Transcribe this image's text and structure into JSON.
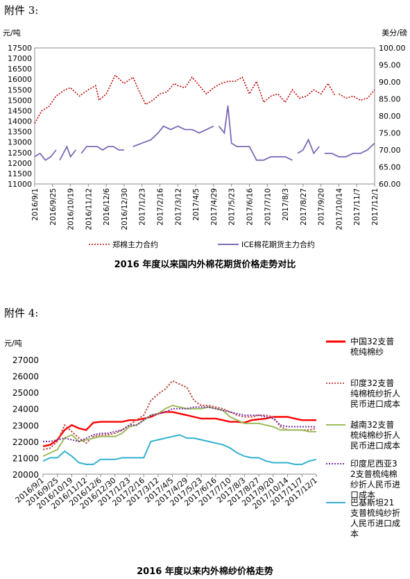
{
  "annex3_label": "附件 3:",
  "annex4_label": "附件 4:",
  "chart_data": [
    {
      "type": "line",
      "title": "2016 年度以来国内外棉花期货价格走势对比",
      "y_left_unit": "元/吨",
      "y_right_unit": "美分/磅",
      "ylim_left": [
        11000,
        17500
      ],
      "ylim_right": [
        60,
        100
      ],
      "y_left_ticks": [
        "11000",
        "11500",
        "12000",
        "12500",
        "13000",
        "13500",
        "14000",
        "14500",
        "15000",
        "15500",
        "16000",
        "16500",
        "17000",
        "17500"
      ],
      "y_right_ticks": [
        "60.00",
        "65.00",
        "70.00",
        "75.00",
        "80.00",
        "85.00",
        "90.00",
        "95.00",
        "100.00"
      ],
      "x_ticks": [
        "2016/9/1",
        "2016/9/25",
        "2016/10/19",
        "2016/11/12",
        "2016/12/6",
        "2016/12/30",
        "2017/1/23",
        "2017/2/16",
        "2017/3/12",
        "2017/4/5",
        "2017/4/29",
        "2017/5/23",
        "2017/6/16",
        "2017/7/10",
        "2017/8/3",
        "2017/8/27",
        "2017/9/20",
        "2017/10/14",
        "2017/11/7",
        "2017/12/1"
      ],
      "legend_position": "bottom",
      "series": [
        {
          "name": "郑棉主力合约",
          "axis": "left",
          "color": "#c00000",
          "style": "dotted",
          "x": [
            0,
            0.4,
            0.8,
            1.2,
            1.7,
            2.0,
            2.5,
            3.0,
            3.4,
            3.6,
            4.0,
            4.5,
            5.0,
            5.5,
            5.8,
            6.2,
            6.6,
            7.0,
            7.4,
            7.8,
            8.0,
            8.4,
            8.8,
            9.2,
            9.6,
            10.0,
            10.4,
            10.8,
            11.2,
            11.6,
            12.0,
            12.4,
            12.8,
            13.2,
            13.6,
            14.0,
            14.4,
            14.8,
            15.2,
            15.6,
            16.0,
            16.4,
            16.8,
            17.0,
            17.4,
            17.8,
            18.2,
            18.6,
            19.0
          ],
          "values": [
            13900,
            14500,
            14700,
            15200,
            15500,
            15600,
            15200,
            15500,
            15700,
            15000,
            15300,
            16200,
            15800,
            16100,
            15500,
            14800,
            15000,
            15300,
            15400,
            15800,
            15700,
            15600,
            16100,
            15700,
            15300,
            15600,
            15800,
            15900,
            15900,
            16100,
            15300,
            15900,
            14900,
            15200,
            15300,
            14900,
            15500,
            15100,
            15200,
            15500,
            15300,
            15800,
            15200,
            15300,
            15100,
            15200,
            15000,
            15100,
            15500
          ],
          "gaps_after_index": [
            42
          ]
        },
        {
          "name": "ICE棉花期货主力合约",
          "axis": "right",
          "color": "#7b68b6",
          "style": "solid",
          "x": [
            0,
            0.3,
            0.6,
            0.9,
            1.2,
            1.4,
            1.8,
            2.0,
            2.3,
            2.6,
            2.9,
            3.2,
            3.5,
            3.8,
            4.1,
            4.4,
            4.7,
            5.0,
            5.5,
            6.0,
            6.5,
            6.9,
            7.2,
            7.6,
            8.0,
            8.4,
            8.8,
            9.2,
            9.6,
            10.0,
            10.3,
            10.6,
            10.8,
            11.0,
            11.3,
            11.6,
            12.0,
            12.4,
            12.8,
            13.2,
            13.6,
            14.0,
            14.4,
            14.7,
            15.0,
            15.3,
            15.6,
            15.9,
            16.2,
            16.6,
            17.0,
            17.4,
            17.8,
            18.2,
            18.6,
            19.0
          ],
          "values": [
            68,
            69,
            67,
            68,
            70,
            67,
            71,
            68,
            70,
            69,
            71,
            71,
            71,
            70,
            71,
            71,
            70,
            70,
            71,
            72,
            73,
            75,
            77,
            76,
            77,
            76,
            76,
            75,
            76,
            77,
            77,
            75,
            83,
            72,
            71,
            71,
            71,
            67,
            67,
            68,
            68,
            68,
            67,
            69,
            70,
            73,
            69,
            71,
            69,
            69,
            68,
            68,
            69,
            69,
            70,
            72
          ],
          "gaps_after_index": [
            4,
            8,
            17,
            29,
            42,
            47
          ]
        }
      ]
    },
    {
      "type": "line",
      "title": "2016 年度以来内外棉纱价格走势",
      "y_unit": "元/吨",
      "ylim": [
        20000,
        27000
      ],
      "y_ticks": [
        "20000",
        "21000",
        "22000",
        "23000",
        "24000",
        "25000",
        "26000",
        "27000"
      ],
      "x_ticks": [
        "2016/9/1",
        "2016/9/25",
        "2016/10/19",
        "2016/11/12",
        "2016/12/6",
        "2016/12/30",
        "2017/1/23",
        "2017/2/16",
        "2017/3/12",
        "2017/4/5",
        "2017/4/29",
        "2017/5/23",
        "2017/6/16",
        "2017/7/10",
        "2017/8/3",
        "2017/8/27",
        "2017/9/20",
        "2017/10/14",
        "2017/11/7",
        "2017/12/1"
      ],
      "legend_position": "right",
      "series": [
        {
          "name": "中国32支普梳纯棉纱",
          "color": "#ff0000",
          "style": "solid",
          "x": [
            0,
            0.5,
            1.0,
            1.5,
            2.0,
            2.5,
            3.0,
            3.5,
            4.0,
            4.5,
            5.0,
            5.5,
            6.0,
            6.5,
            7.0,
            7.5,
            8.0,
            8.5,
            9.0,
            9.5,
            10.0,
            10.5,
            11.0,
            11.5,
            12.0,
            12.5,
            13.0,
            13.5,
            14.0,
            14.5,
            15.0,
            15.5,
            16.0,
            16.5,
            17.0,
            17.5,
            18.0,
            18.5,
            19.0
          ],
          "values": [
            21700,
            21800,
            22100,
            22700,
            23000,
            22800,
            22700,
            23150,
            23200,
            23200,
            23200,
            23200,
            23300,
            23300,
            23400,
            23500,
            23700,
            23800,
            23800,
            23700,
            23600,
            23500,
            23400,
            23400,
            23400,
            23300,
            23200,
            23200,
            23150,
            23300,
            23350,
            23400,
            23500,
            23500,
            23500,
            23400,
            23300,
            23300,
            23300
          ]
        },
        {
          "name": "印度32支普纯棉梳纱折人民币进口成本",
          "color": "#c0504d",
          "style": "dotted",
          "x": [
            0,
            0.5,
            1.0,
            1.5,
            2.0,
            2.5,
            3.0,
            3.5,
            4.0,
            4.5,
            5.0,
            5.5,
            6.0,
            6.5,
            7.0,
            7.5,
            8.0,
            8.5,
            9.0,
            9.5,
            10.0,
            10.5,
            11.0,
            11.5,
            12.0,
            12.5,
            13.0,
            13.5,
            14.0,
            14.5,
            15.0,
            15.5,
            16.0,
            16.5,
            17.0,
            17.5,
            18.0,
            18.5,
            19.0
          ],
          "values": [
            21500,
            21600,
            22000,
            23000,
            22600,
            22200,
            21900,
            22300,
            22400,
            22400,
            22500,
            22700,
            23000,
            23300,
            23600,
            24500,
            24900,
            25200,
            25700,
            25500,
            25300,
            24500,
            24200,
            24200,
            24100,
            24000,
            23800,
            23600,
            23500,
            23500,
            23600,
            23600,
            23500,
            22900,
            22700,
            22700,
            22700,
            22700,
            22800
          ]
        },
        {
          "name": "越南32支普梳纯棉纱折人民币进口成本",
          "color": "#9bbb59",
          "style": "solid",
          "x": [
            0,
            0.5,
            1.0,
            1.5,
            2.0,
            2.5,
            3.0,
            3.5,
            4.0,
            4.5,
            5.0,
            5.5,
            6.0,
            6.5,
            7.0,
            7.5,
            8.0,
            8.5,
            9.0,
            9.5,
            10.0,
            10.5,
            11.0,
            11.5,
            12.0,
            12.5,
            13.0,
            13.5,
            14.0,
            14.5,
            15.0,
            15.5,
            16.0,
            16.5,
            17.0,
            17.5,
            18.0,
            18.5,
            19.0
          ],
          "values": [
            21100,
            21300,
            21500,
            22200,
            22400,
            22000,
            22100,
            22200,
            22300,
            22300,
            22300,
            22500,
            22900,
            23000,
            23300,
            23600,
            23700,
            24000,
            24200,
            24100,
            24000,
            24000,
            24000,
            24100,
            24000,
            23900,
            23500,
            23300,
            23100,
            23100,
            23100,
            23000,
            22900,
            22700,
            22700,
            22700,
            22700,
            22600,
            22600
          ]
        },
        {
          "name": "印度尼西亚32支普梳纯棉纱折人民币进口成本",
          "color": "#7030a0",
          "style": "dotted",
          "x": [
            0,
            0.5,
            1.0,
            1.5,
            2.0,
            2.5,
            3.0,
            3.5,
            4.0,
            4.5,
            5.0,
            5.5,
            6.0,
            6.5,
            7.0,
            7.5,
            8.0,
            8.5,
            9.0,
            9.5,
            10.0,
            10.5,
            11.0,
            11.5,
            12.0,
            12.5,
            13.0,
            13.5,
            14.0,
            14.5,
            15.0,
            15.5,
            16.0,
            16.5,
            17.0,
            17.5,
            18.0,
            18.5,
            19.0
          ],
          "values": [
            22000,
            22000,
            22100,
            22200,
            22100,
            22000,
            22200,
            22400,
            22500,
            22500,
            22600,
            22700,
            23000,
            23000,
            23300,
            23600,
            23700,
            23800,
            24000,
            24000,
            24000,
            24100,
            24100,
            24100,
            24000,
            23900,
            23800,
            23700,
            23600,
            23600,
            23600,
            23500,
            23400,
            23000,
            22900,
            22900,
            22900,
            22900,
            22900
          ]
        },
        {
          "name": "巴基斯坦21支普梳纯纱折人民币进口成本",
          "color": "#31b0d0",
          "style": "solid",
          "x": [
            0,
            0.5,
            1.0,
            1.5,
            2.0,
            2.5,
            3.0,
            3.5,
            4.0,
            4.5,
            5.0,
            5.5,
            6.0,
            6.5,
            7.0,
            7.5,
            8.0,
            8.5,
            9.0,
            9.5,
            10.0,
            10.5,
            11.0,
            11.5,
            12.0,
            12.5,
            13.0,
            13.5,
            14.0,
            14.5,
            15.0,
            15.5,
            16.0,
            16.5,
            17.0,
            17.5,
            18.0,
            18.5,
            19.0
          ],
          "values": [
            20800,
            21000,
            21000,
            21400,
            21100,
            20700,
            20600,
            20600,
            20900,
            20900,
            20900,
            21000,
            21000,
            21000,
            21000,
            22000,
            22100,
            22200,
            22300,
            22400,
            22200,
            22200,
            22100,
            22000,
            21900,
            21800,
            21600,
            21300,
            21100,
            21000,
            21000,
            20800,
            20700,
            20700,
            20700,
            20600,
            20600,
            20800,
            20900
          ]
        }
      ]
    }
  ]
}
